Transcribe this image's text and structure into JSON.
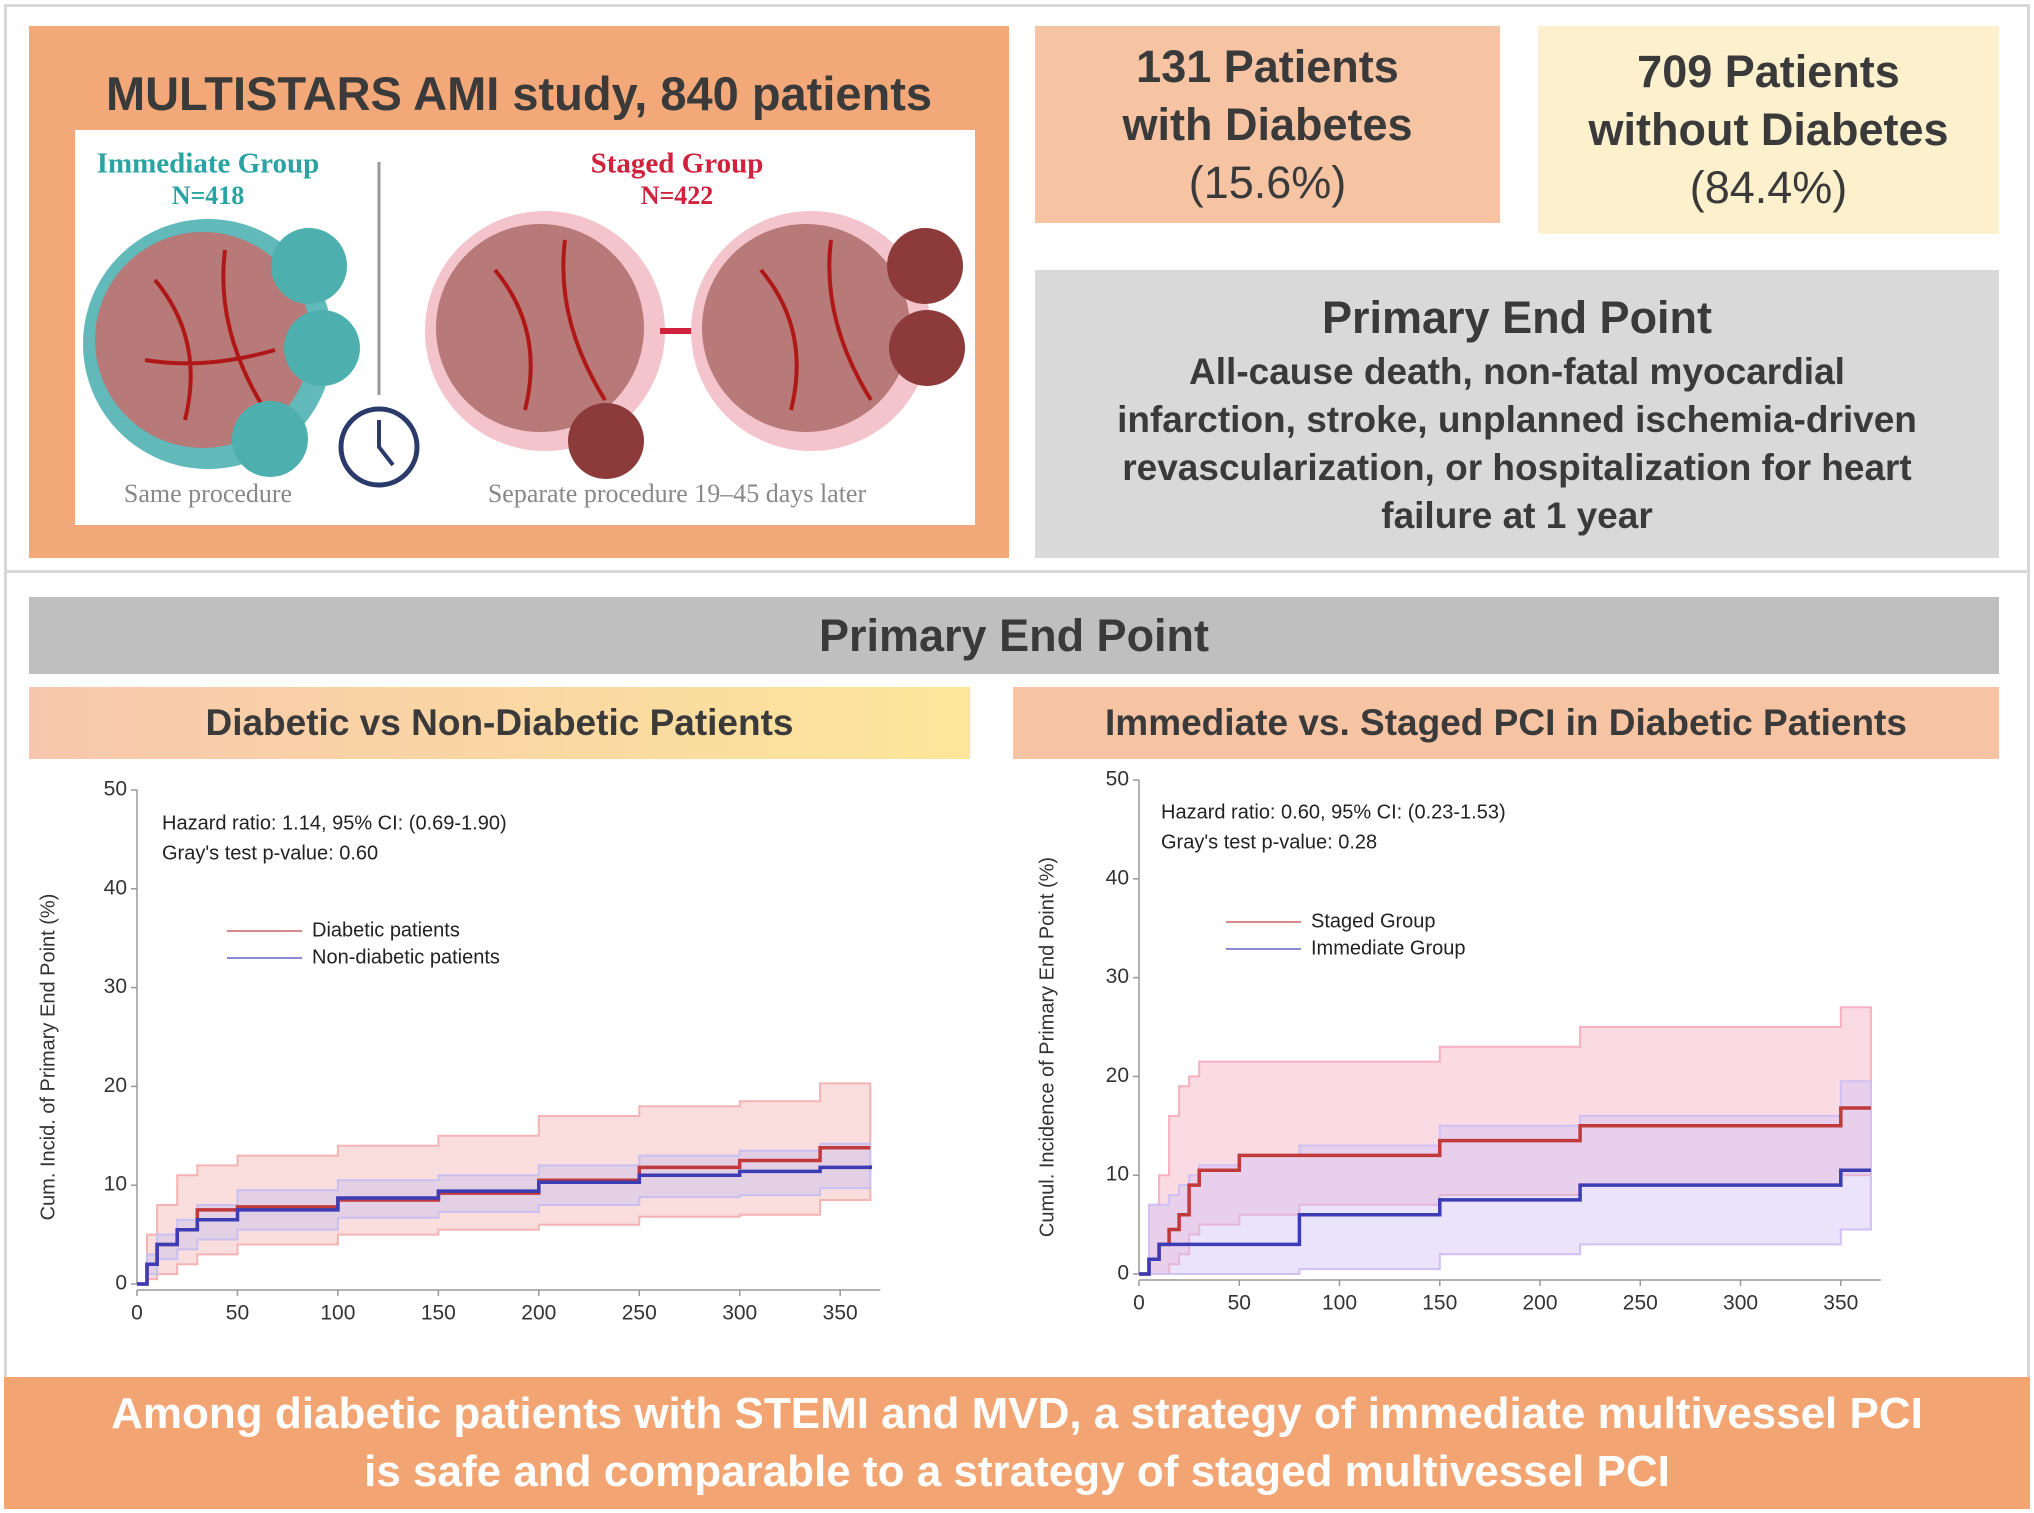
{
  "header": {
    "title": "MULTISTARS AMI study, 840 patients"
  },
  "illustration": {
    "immediate_label": "Immediate Group",
    "immediate_n": "N=418",
    "staged_label": "Staged Group",
    "staged_n": "N=422",
    "immediate_caption": "Same procedure",
    "staged_caption": "Separate procedure 19–45 days later"
  },
  "diabetes_box": {
    "lines": [
      "131 Patients",
      "with Diabetes"
    ],
    "percent": "(15.6%)"
  },
  "no_diabetes_box": {
    "lines": [
      "709 Patients",
      "without Diabetes"
    ],
    "percent": "(84.4%)"
  },
  "endpoint_box": {
    "title": "Primary End Point",
    "text_lines": [
      "All-cause death, non-fatal myocardial",
      "infarction, stroke, unplanned ischemia-driven",
      "revascularization, or hospitalization for heart",
      "failure at 1 year"
    ]
  },
  "section_title": "Primary End Point",
  "conclusion": {
    "lines": [
      "Among diabetic patients with STEMI and MVD, a strategy of immediate multivessel PCI",
      "is safe and comparable to a strategy of staged multivessel PCI"
    ]
  },
  "chart_data": [
    {
      "type": "step",
      "title": "Diabetic vs Non-Diabetic Patients",
      "ylabel": "Cum. Incid. of Primary End Point (%)",
      "annotations": [
        "Hazard ratio: 1.14, 95% CI: (0.69-1.90)",
        "Gray's test p-value: 0.60"
      ],
      "x": [
        0,
        5,
        10,
        20,
        30,
        50,
        100,
        150,
        200,
        250,
        300,
        340,
        365
      ],
      "series": [
        {
          "name": "Diabetic patients",
          "color": "#c0393b",
          "band_color": "#f4b4b4",
          "values": [
            0,
            2,
            4,
            5.5,
            7.5,
            7.8,
            8.5,
            9.2,
            10.5,
            11.8,
            12.5,
            13.8,
            13.8
          ],
          "upper": [
            0,
            5,
            8,
            11,
            12,
            13,
            14,
            15,
            17,
            18,
            18.5,
            20.3,
            20.3
          ],
          "lower": [
            0,
            0.5,
            1,
            2,
            3,
            4,
            5,
            5.5,
            6,
            6.8,
            7,
            8.5,
            8.5
          ]
        },
        {
          "name": "Non-diabetic patients",
          "color": "#3c3cb4",
          "band_color": "#c8c0f0",
          "values": [
            0,
            2,
            4,
            5.5,
            6.5,
            7.5,
            8.7,
            9.4,
            10.3,
            11,
            11.4,
            11.8,
            12
          ],
          "upper": [
            0,
            3,
            5,
            6.5,
            8,
            9.5,
            10.5,
            11,
            12,
            13,
            13.5,
            14.2,
            14.5
          ],
          "lower": [
            0,
            1,
            2.5,
            3.5,
            4.5,
            5.5,
            6.7,
            7.3,
            8,
            8.8,
            9,
            9.7,
            10
          ]
        }
      ],
      "xlim": [
        0,
        370
      ],
      "xticks": [
        0,
        50,
        100,
        150,
        200,
        250,
        300,
        350
      ],
      "ylim": [
        0,
        50
      ],
      "yticks": [
        0,
        10,
        20,
        30,
        40,
        50
      ]
    },
    {
      "type": "step",
      "title": "Immediate vs. Staged PCI in Diabetic Patients",
      "ylabel": "Cumul. Incidence of Primary End Point (%)",
      "annotations": [
        "Hazard ratio: 0.60, 95% CI: (0.23-1.53)",
        "Gray's test p-value: 0.28"
      ],
      "x": [
        0,
        5,
        10,
        15,
        20,
        25,
        30,
        50,
        80,
        150,
        220,
        350,
        365
      ],
      "series": [
        {
          "name": "Staged Group",
          "color": "#c0393b",
          "band_color": "#f6b0c0",
          "values": [
            0,
            1.5,
            3,
            4.5,
            6,
            9,
            10.5,
            12,
            12,
            13.5,
            15,
            16.8,
            16.8
          ],
          "upper": [
            0,
            7,
            10,
            16,
            19,
            20,
            21.5,
            21.5,
            21.5,
            23,
            25,
            27,
            27
          ],
          "lower": [
            0,
            0,
            0,
            1,
            2,
            4,
            5,
            6,
            7,
            8,
            9,
            10,
            10
          ]
        },
        {
          "name": "Immediate Group",
          "color": "#3c3cb4",
          "band_color": "#d0c0f4",
          "values": [
            0,
            1.5,
            3,
            3,
            3,
            3,
            3,
            3,
            6,
            7.5,
            9,
            10.5,
            10.5
          ],
          "upper": [
            0,
            7,
            7,
            8,
            9,
            10,
            11,
            12,
            13,
            15,
            16,
            19.5,
            19.5
          ],
          "lower": [
            0,
            0,
            0,
            0,
            0,
            0,
            0,
            0,
            0.5,
            2,
            3,
            4.5,
            4.5
          ]
        }
      ],
      "xlim": [
        0,
        370
      ],
      "xticks": [
        0,
        50,
        100,
        150,
        200,
        250,
        300,
        350
      ],
      "ylim": [
        0,
        50
      ],
      "yticks": [
        0,
        10,
        20,
        30,
        40,
        50
      ]
    }
  ]
}
